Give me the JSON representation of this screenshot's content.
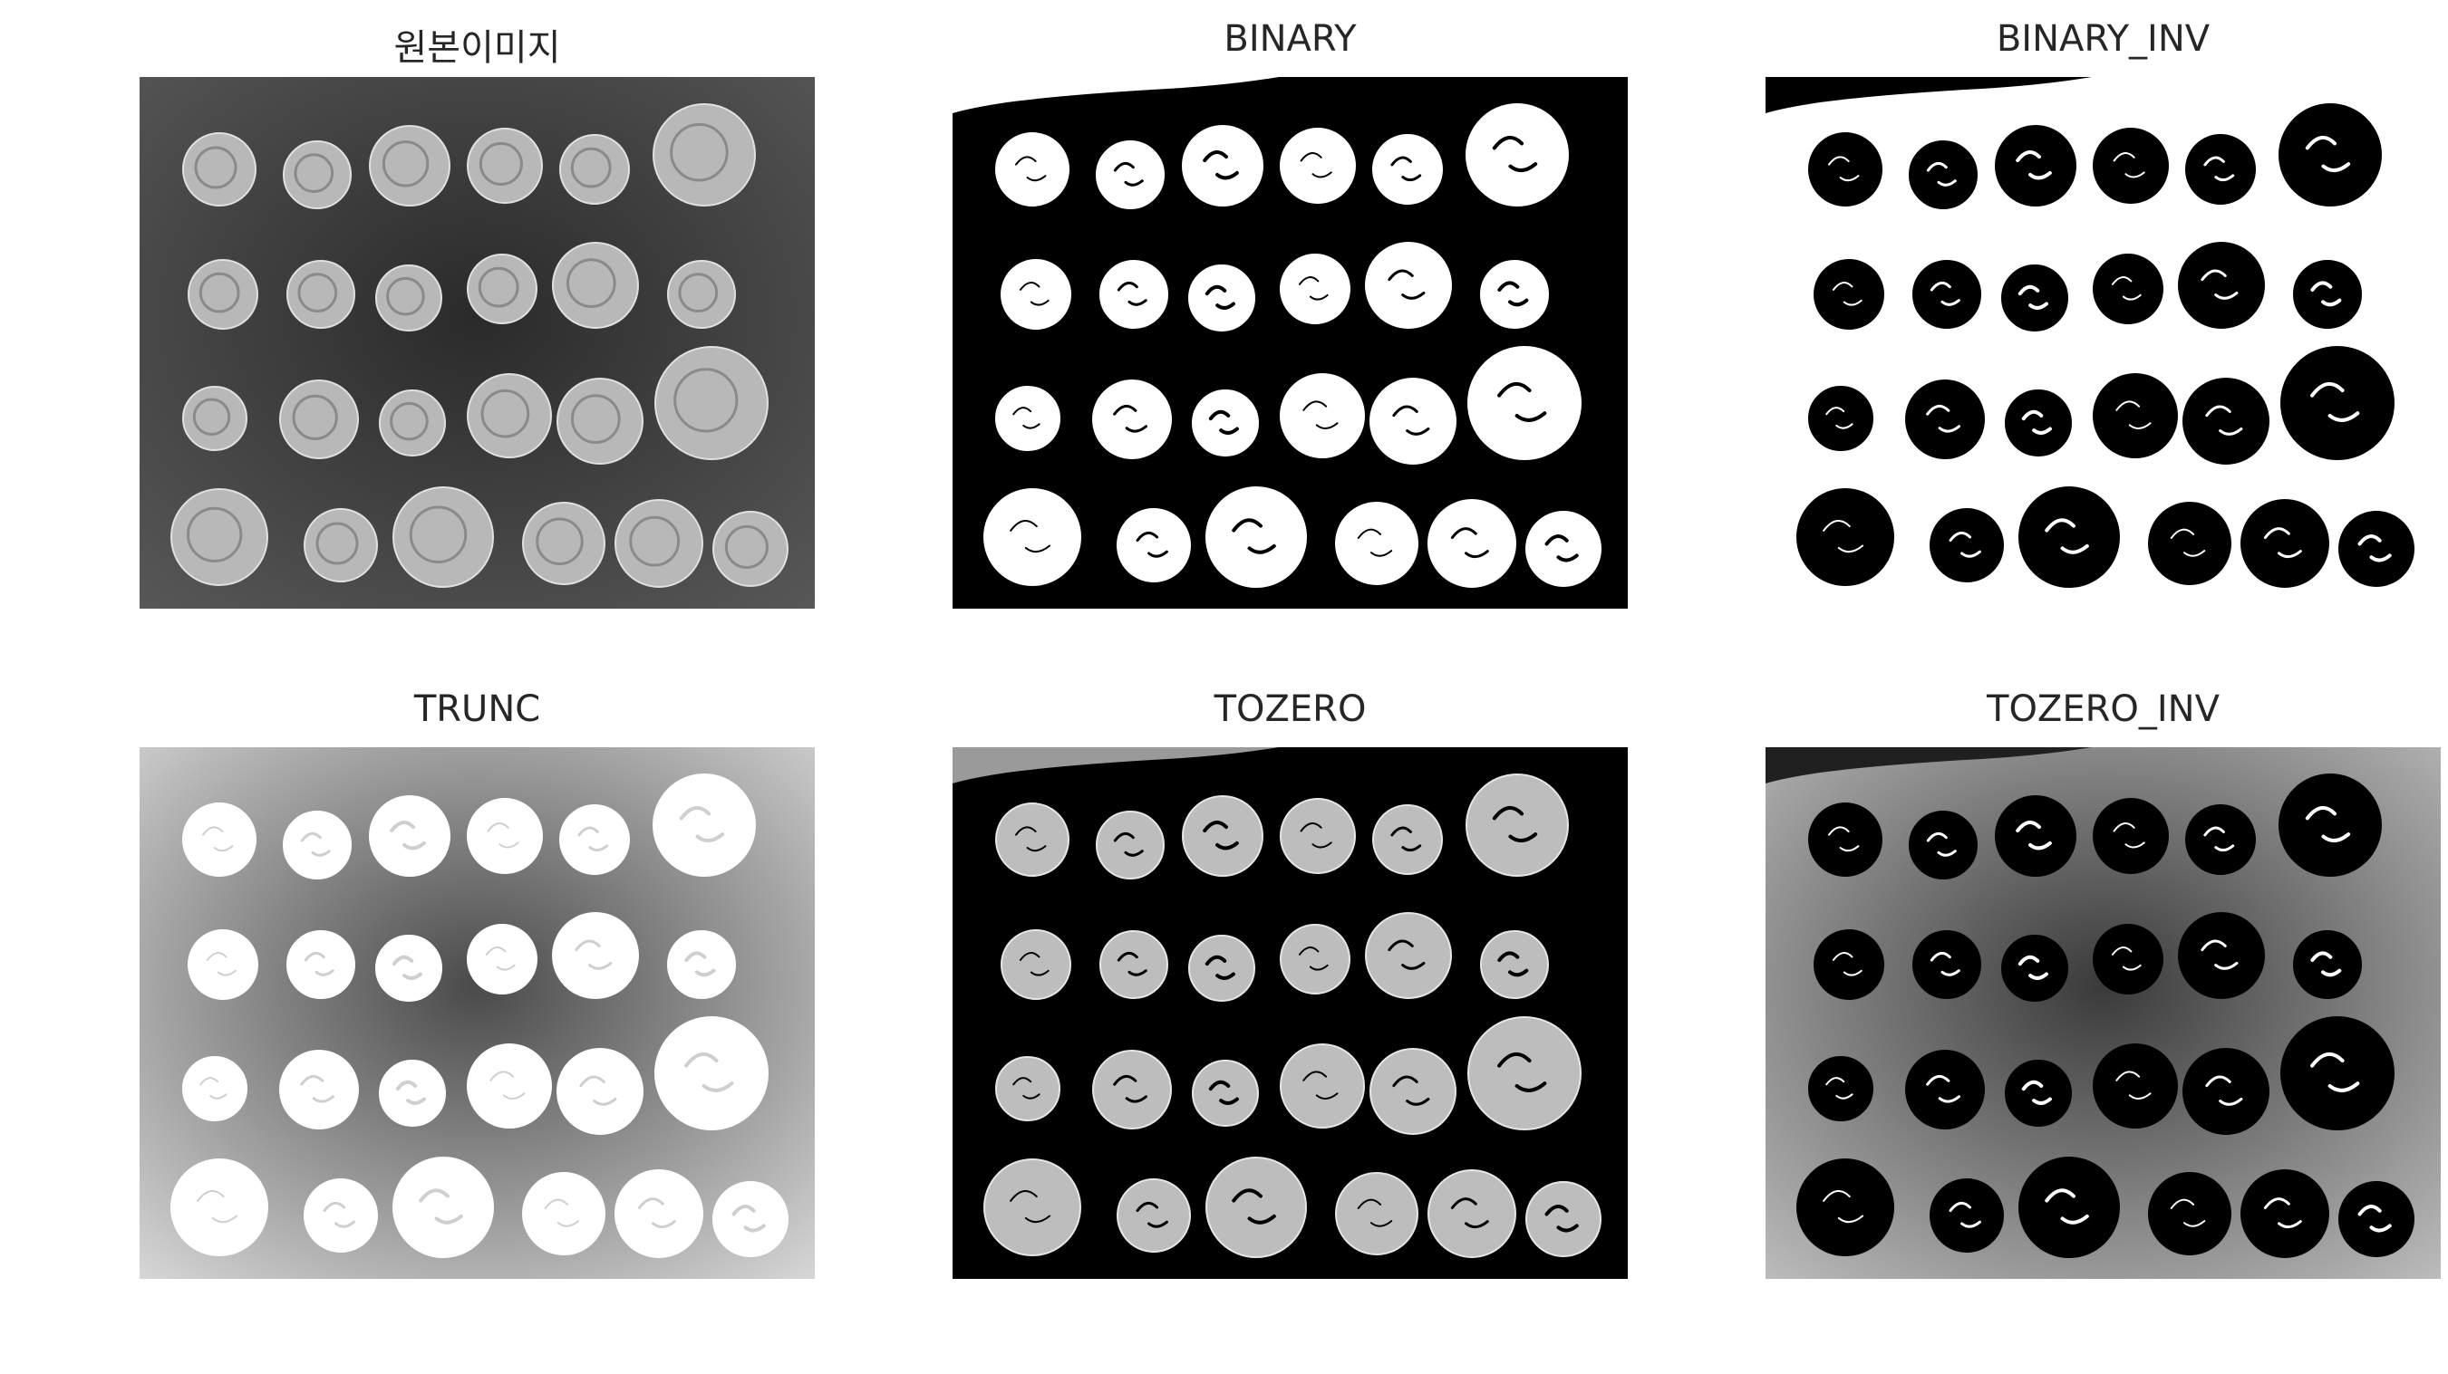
{
  "figure": {
    "background": "#ffffff",
    "panels": [
      {
        "id": "original",
        "title": "원본이미지",
        "mode": "original",
        "background": "#3c3c3c",
        "coin_fill": "#b4b4b4"
      },
      {
        "id": "binary",
        "title": "BINARY",
        "mode": "binary",
        "background": "#000000",
        "coin_fill": "#ffffff"
      },
      {
        "id": "binary_inv",
        "title": "BINARY_INV",
        "mode": "binary_inv",
        "background": "#ffffff",
        "coin_fill": "#000000"
      },
      {
        "id": "trunc",
        "title": "TRUNC",
        "mode": "trunc",
        "background": "#5a5a5a",
        "coin_fill": "#ffffff"
      },
      {
        "id": "tozero",
        "title": "TOZERO",
        "mode": "tozero",
        "background": "#000000",
        "coin_fill": "#c8c8c8"
      },
      {
        "id": "tozero_inv",
        "title": "TOZERO_INV",
        "mode": "tozero_inv",
        "background": "#7a7a7a",
        "coin_fill": "#000000"
      }
    ]
  }
}
